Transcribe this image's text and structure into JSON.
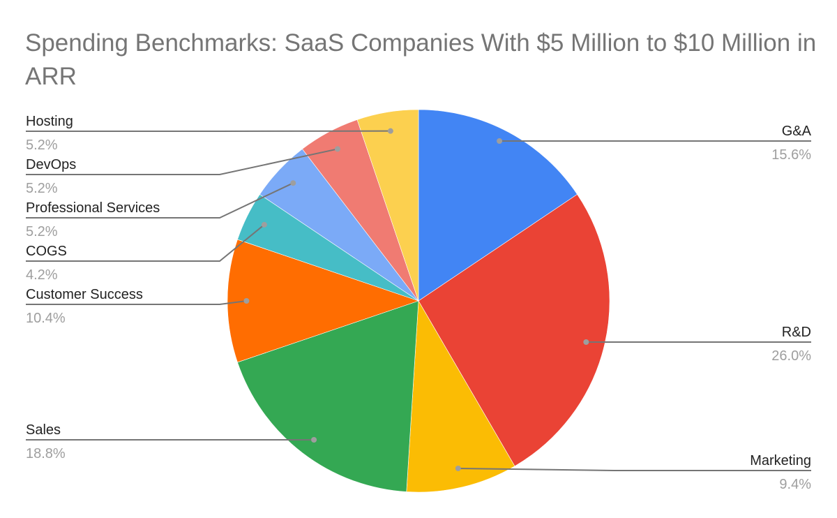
{
  "chart_data": {
    "type": "pie",
    "title": "Spending Benchmarks: SaaS Companies With $5 Million to $10 Million in ARR",
    "start_angle": "12 o'clock, clockwise",
    "legend_position": "labeled (leader lines)",
    "categories": [
      "G&A",
      "R&D",
      "Marketing",
      "Sales",
      "Customer Success",
      "COGS",
      "Professional Services",
      "DevOps",
      "Hosting"
    ],
    "values": [
      15.6,
      26.0,
      9.4,
      18.8,
      10.4,
      4.2,
      5.2,
      5.2,
      5.2
    ],
    "value_labels": [
      "15.6%",
      "26.0%",
      "9.4%",
      "18.8%",
      "10.4%",
      "4.2%",
      "5.2%",
      "5.2%",
      "5.2%"
    ],
    "colors": [
      "#4285f4",
      "#ea4335",
      "#fbbc04",
      "#34a853",
      "#ff6d01",
      "#46bdc6",
      "#7baaf7",
      "#f07b72",
      "#fcd04f"
    ],
    "label_side": [
      "right",
      "right",
      "right",
      "left",
      "left",
      "left",
      "left",
      "left",
      "left"
    ]
  },
  "title_line": "Spending Benchmarks: SaaS Companies With $5 Million to $10 Million in ARR"
}
